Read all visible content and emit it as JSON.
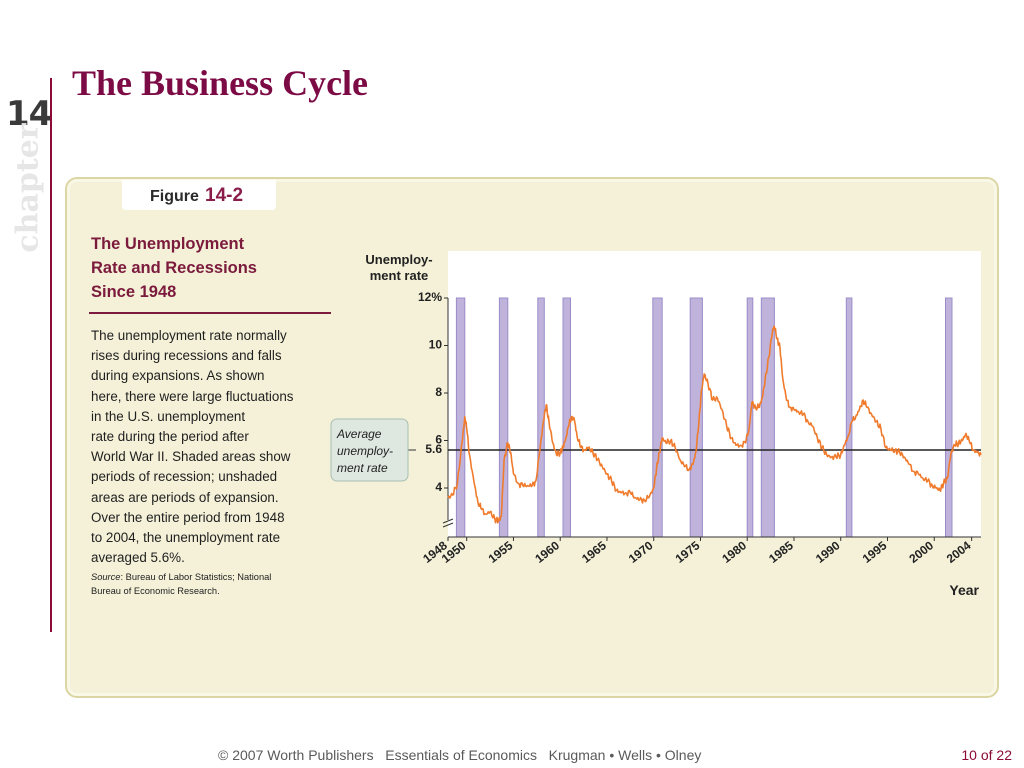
{
  "slide": {
    "chapter_number": "14",
    "chapter_word": "chapter",
    "title": "The Business Cycle",
    "footer_credit": "© 2007 Worth Publishers   Essentials of Economics   Krugman • Wells • Olney",
    "page_indicator": "10 of 22"
  },
  "figure": {
    "label": "Figure",
    "number": "14-2",
    "title_lines": [
      "The Unemployment",
      "Rate and Recessions",
      "Since 1948"
    ],
    "caption_lines": [
      "The unemployment rate normally",
      "rises during recessions and falls",
      "during expansions. As shown",
      "here, there were large fluctuations",
      "in the U.S. unemployment",
      "rate during the period after",
      "World War II. Shaded areas show",
      "periods of recession; unshaded",
      "areas are periods of expansion.",
      "Over the entire period from 1948",
      "to 2004, the unemployment rate",
      "averaged 5.6%."
    ],
    "source_label": "Source",
    "source_lines": [
      ": Bureau of Labor Statistics; National",
      "Bureau of Economic Research."
    ]
  },
  "colors": {
    "title": "#7c0a45",
    "panel": "#f4f1d8",
    "line": "#f07b2c",
    "recession_fill": "#bfb3dc",
    "recession_stroke": "#9b8cc8",
    "average_line": "#222222",
    "annotation_box": "#dfe7e1"
  },
  "chart_data": {
    "type": "line",
    "ylabel_lines": [
      "Unemploy-",
      "ment rate"
    ],
    "xlabel": "Year",
    "ylim": [
      2.2,
      12
    ],
    "xlim": [
      1948,
      2005
    ],
    "y_ticks": [
      {
        "value": 12,
        "label": "12%"
      },
      {
        "value": 10,
        "label": "10"
      },
      {
        "value": 8,
        "label": "8"
      },
      {
        "value": 6,
        "label": "6"
      },
      {
        "value": 4,
        "label": "4"
      }
    ],
    "x_ticks": [
      {
        "value": 1948,
        "label": "1948"
      },
      {
        "value": 1950,
        "label": "1950"
      },
      {
        "value": 1955,
        "label": "1955"
      },
      {
        "value": 1960,
        "label": "1960"
      },
      {
        "value": 1965,
        "label": "1965"
      },
      {
        "value": 1970,
        "label": "1970"
      },
      {
        "value": 1975,
        "label": "1975"
      },
      {
        "value": 1980,
        "label": "1980"
      },
      {
        "value": 1985,
        "label": "1985"
      },
      {
        "value": 1990,
        "label": "1990"
      },
      {
        "value": 1995,
        "label": "1995"
      },
      {
        "value": 2000,
        "label": "2000"
      },
      {
        "value": 2004,
        "label": "2004"
      }
    ],
    "average": {
      "value": 5.6,
      "label": "5.6",
      "annotation_lines": [
        "Average",
        "unemploy-",
        "ment rate"
      ]
    },
    "recessions": [
      [
        1948.9,
        1949.8
      ],
      [
        1953.5,
        1954.4
      ],
      [
        1957.6,
        1958.3
      ],
      [
        1960.3,
        1961.1
      ],
      [
        1969.9,
        1970.9
      ],
      [
        1973.9,
        1975.2
      ],
      [
        1980.0,
        1980.6
      ],
      [
        1981.5,
        1982.9
      ],
      [
        1990.6,
        1991.2
      ],
      [
        2001.2,
        2001.9
      ]
    ],
    "series": [
      {
        "x": [
          1948.0,
          1948.5,
          1949.0,
          1949.5,
          1949.8,
          1950.0,
          1950.3,
          1950.8,
          1951.2,
          1951.6,
          1952.0,
          1952.5,
          1953.0,
          1953.4,
          1953.7,
          1954.0,
          1954.4,
          1954.7,
          1955.0,
          1955.5,
          1956.0,
          1956.5,
          1957.0,
          1957.4,
          1957.8,
          1958.2,
          1958.5,
          1958.8,
          1959.2,
          1959.6,
          1960.0,
          1960.3,
          1960.6,
          1960.9,
          1961.2,
          1961.5,
          1961.8,
          1962.2,
          1962.6,
          1963.0,
          1963.5,
          1964.0,
          1964.5,
          1965.0,
          1965.5,
          1966.0,
          1966.5,
          1967.0,
          1967.5,
          1968.0,
          1968.5,
          1969.0,
          1969.5,
          1970.0,
          1970.3,
          1970.6,
          1970.9,
          1971.3,
          1971.8,
          1972.3,
          1972.8,
          1973.3,
          1973.8,
          1974.2,
          1974.5,
          1974.8,
          1975.1,
          1975.4,
          1975.8,
          1976.3,
          1976.8,
          1977.3,
          1977.8,
          1978.3,
          1978.8,
          1979.3,
          1979.8,
          1980.2,
          1980.5,
          1980.9,
          1981.3,
          1981.6,
          1981.9,
          1982.3,
          1982.7,
          1982.9,
          1983.2,
          1983.5,
          1983.8,
          1984.2,
          1984.6,
          1985.0,
          1985.5,
          1986.0,
          1986.5,
          1987.0,
          1987.5,
          1988.0,
          1988.5,
          1989.0,
          1989.5,
          1990.0,
          1990.4,
          1990.8,
          1991.2,
          1991.6,
          1992.0,
          1992.4,
          1992.8,
          1993.3,
          1993.8,
          1994.3,
          1994.8,
          1995.3,
          1995.8,
          1996.3,
          1996.8,
          1997.3,
          1997.8,
          1998.3,
          1998.8,
          1999.3,
          1999.8,
          2000.2,
          2000.6,
          2001.0,
          2001.4,
          2001.8,
          2002.2,
          2002.6,
          2003.0,
          2003.4,
          2003.8,
          2004.2,
          2004.6,
          2005.0
        ],
        "y": [
          3.6,
          3.7,
          4.2,
          5.9,
          7.0,
          6.5,
          5.4,
          4.2,
          3.4,
          3.1,
          2.9,
          3.0,
          2.7,
          2.6,
          2.8,
          5.2,
          5.9,
          5.5,
          4.6,
          4.2,
          4.1,
          4.1,
          4.1,
          4.3,
          5.5,
          6.8,
          7.5,
          6.8,
          5.9,
          5.4,
          5.5,
          5.7,
          6.1,
          6.6,
          7.0,
          6.9,
          6.2,
          5.7,
          5.6,
          5.7,
          5.5,
          5.2,
          4.9,
          4.6,
          4.3,
          3.9,
          3.8,
          3.8,
          3.8,
          3.6,
          3.5,
          3.5,
          3.6,
          4.0,
          4.8,
          5.5,
          6.1,
          5.9,
          6.0,
          5.7,
          5.2,
          4.9,
          4.8,
          5.0,
          5.5,
          6.6,
          8.1,
          8.8,
          8.4,
          7.7,
          7.8,
          7.3,
          6.6,
          6.1,
          5.8,
          5.8,
          5.9,
          6.5,
          7.6,
          7.4,
          7.4,
          7.8,
          8.5,
          9.5,
          10.6,
          10.8,
          10.3,
          9.9,
          8.6,
          7.7,
          7.4,
          7.3,
          7.2,
          7.1,
          6.8,
          6.6,
          6.1,
          5.7,
          5.4,
          5.3,
          5.3,
          5.4,
          5.8,
          6.2,
          6.8,
          7.0,
          7.3,
          7.7,
          7.4,
          7.1,
          6.8,
          6.5,
          5.7,
          5.6,
          5.6,
          5.5,
          5.3,
          5.0,
          4.7,
          4.6,
          4.4,
          4.3,
          4.1,
          4.0,
          3.9,
          4.2,
          4.4,
          5.5,
          5.8,
          5.9,
          6.0,
          6.3,
          5.9,
          5.6,
          5.5,
          5.4
        ]
      }
    ]
  }
}
